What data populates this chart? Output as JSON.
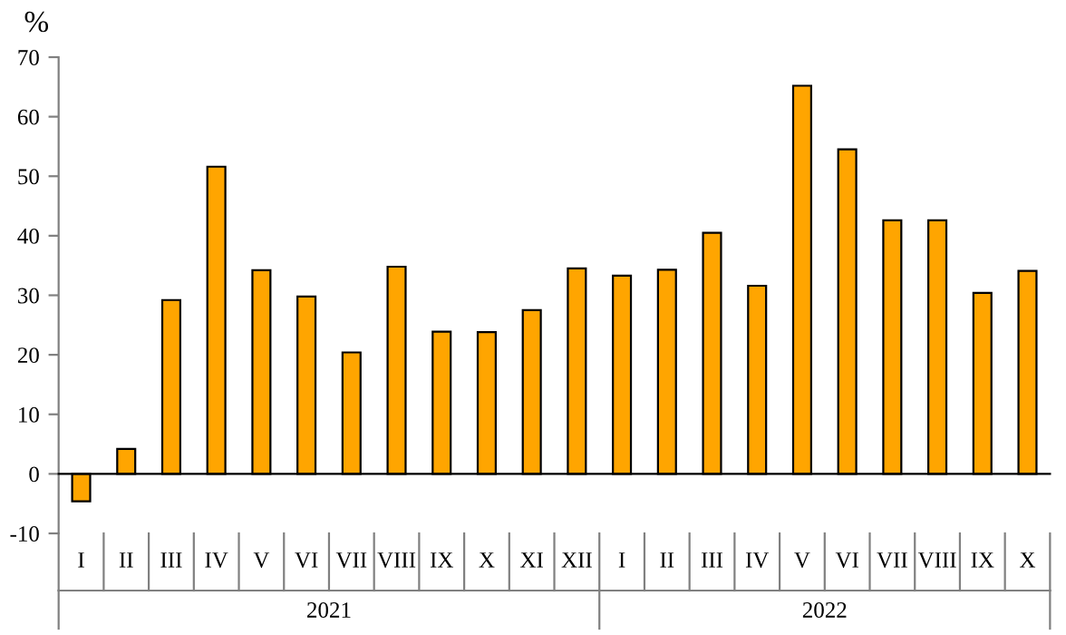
{
  "chart_data": {
    "type": "bar",
    "ylabel": "%",
    "categories": [
      "I",
      "II",
      "III",
      "IV",
      "V",
      "VI",
      "VII",
      "VIII",
      "IX",
      "X",
      "XI",
      "XII",
      "I",
      "II",
      "III",
      "IV",
      "V",
      "VI",
      "VII",
      "VIII",
      "IX",
      "X"
    ],
    "values": [
      -4.6,
      4.2,
      29.2,
      51.6,
      34.2,
      29.8,
      20.4,
      34.8,
      23.9,
      23.8,
      27.5,
      34.5,
      33.3,
      34.3,
      40.5,
      31.6,
      65.2,
      54.5,
      42.6,
      42.6,
      30.4,
      34.1
    ],
    "color": "#ffa500",
    "ylim": [
      -10,
      70
    ],
    "yticks": [
      -10,
      0,
      10,
      20,
      30,
      40,
      50,
      60,
      70
    ],
    "annotations": [
      "2021",
      "2022"
    ]
  }
}
